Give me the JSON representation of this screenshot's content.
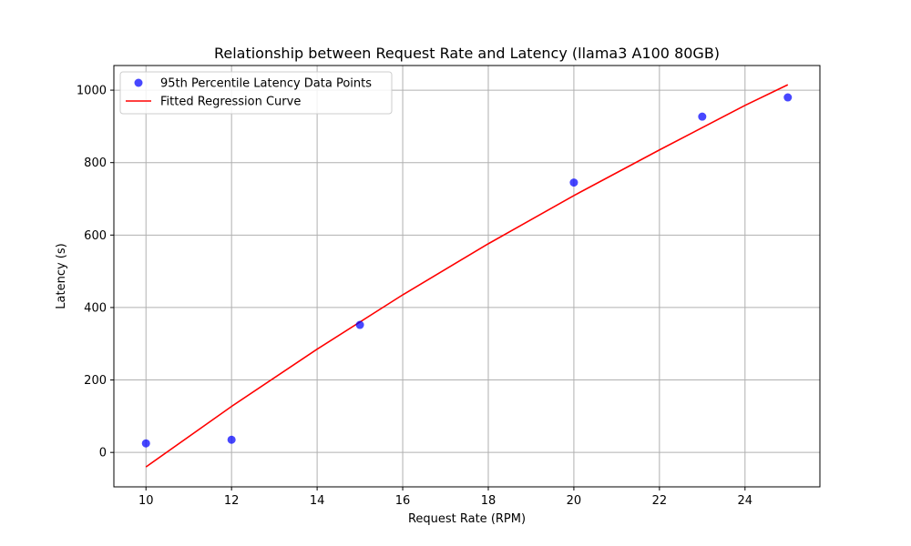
{
  "chart_data": {
    "type": "scatter",
    "title": "Relationship between Request Rate and Latency (llama3 A100 80GB)",
    "xlabel": "Request Rate (RPM)",
    "ylabel": "Latency (s)",
    "xlim": [
      9.25,
      25.75
    ],
    "ylim": [
      -95,
      1068
    ],
    "xticks": [
      10,
      12,
      14,
      16,
      18,
      20,
      22,
      24
    ],
    "yticks": [
      0,
      200,
      400,
      600,
      800,
      1000
    ],
    "grid": true,
    "legend_position": "top-left",
    "series": [
      {
        "name": "95th Percentile Latency Data Points",
        "kind": "scatter",
        "color": "#0000ff",
        "x": [
          10,
          12,
          15,
          20,
          23,
          25
        ],
        "y": [
          25,
          35,
          352,
          745,
          927,
          980
        ]
      },
      {
        "name": "Fitted Regression Curve",
        "kind": "line",
        "color": "#ff0000",
        "x": [
          10,
          12,
          14,
          16,
          18,
          20,
          22,
          24,
          25
        ],
        "y": [
          -40,
          127,
          285,
          435,
          576,
          709,
          835,
          958,
          1015
        ]
      }
    ]
  }
}
